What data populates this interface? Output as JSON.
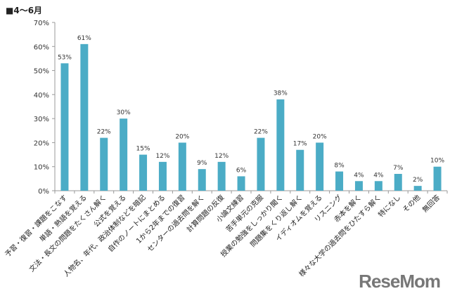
{
  "chart_data": {
    "type": "bar",
    "title": "■4〜6月",
    "categories": [
      "予習・復習・課題をこなす",
      "単語・熟語を覚える",
      "文法・長文の問題をたくさん解く",
      "公式を覚える",
      "人物名、年代、政治体制などを暗記",
      "自作のノートにまとめる",
      "1から2年までの復習",
      "センターの過去問を解く",
      "計算問題の反復",
      "小論文練習",
      "苦手単元の克服",
      "授業の勉強をしっかり聞く",
      "問題集をくり返し解く",
      "イディオムを覚える",
      "リスニング",
      "赤本を解く",
      "様々な大学の過去問をひたすら解く",
      "特になし",
      "その他",
      "無回答"
    ],
    "values": [
      53,
      61,
      22,
      30,
      15,
      12,
      20,
      9,
      12,
      6,
      22,
      38,
      17,
      20,
      8,
      4,
      4,
      7,
      2,
      10
    ],
    "ylim": [
      0,
      70
    ],
    "yticks": [
      0,
      10,
      20,
      30,
      40,
      50,
      60,
      70
    ],
    "xlabel": "",
    "ylabel": "",
    "bar_color": "#4bacc6"
  },
  "logo": "ReseMom"
}
